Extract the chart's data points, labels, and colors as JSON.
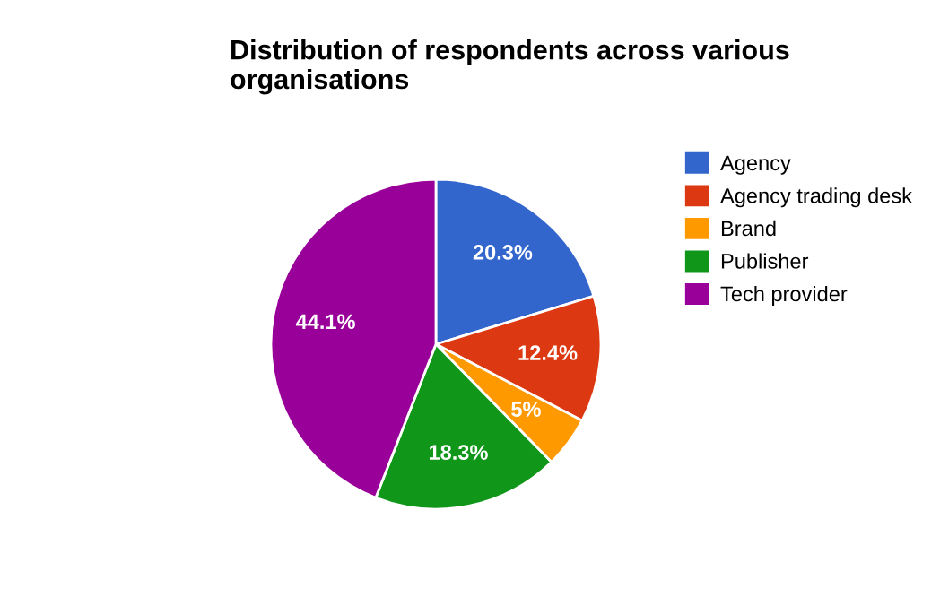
{
  "chart_data": {
    "type": "pie",
    "title": "Distribution of respondents across various organisations",
    "categories": [
      "Agency",
      "Agency trading desk",
      "Brand",
      "Publisher",
      "Tech provider"
    ],
    "values": [
      20.3,
      12.4,
      5,
      18.3,
      44.1
    ],
    "value_labels": [
      "20.3%",
      "12.4%",
      "5%",
      "18.3%",
      "44.1%"
    ],
    "colors": [
      "#3366cc",
      "#dc3912",
      "#ff9900",
      "#109618",
      "#990099"
    ],
    "legend": "right"
  }
}
